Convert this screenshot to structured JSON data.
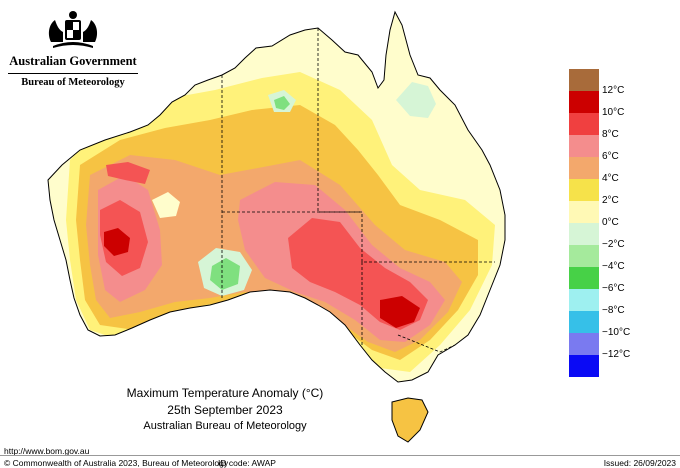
{
  "logo": {
    "government": "Australian Government",
    "bureau": "Bureau of Meteorology"
  },
  "map": {
    "title": "Maximum Temperature Anomaly (°C)",
    "date": "25th September 2023",
    "source": "Australian Bureau of Meteorology",
    "colors": {
      "land_neutral": "#fffdcc",
      "anomaly_2": "#fff27a",
      "anomaly_4": "#f6c343",
      "anomaly_6": "#f3a86c",
      "anomaly_8": "#f48d8d",
      "anomaly_10": "#f45454",
      "anomaly_12": "#cc0000",
      "cool_0": "#d6f5d6",
      "cool_2": "#7fe07f",
      "coast_outline": "#000000",
      "state_borders": "#000000"
    }
  },
  "legend": {
    "entries": [
      {
        "label": "",
        "color": "#a86b3a"
      },
      {
        "label": "12°C",
        "color": "#cc0000"
      },
      {
        "label": "10°C",
        "color": "#f04040"
      },
      {
        "label": "8°C",
        "color": "#f48d8d"
      },
      {
        "label": "6°C",
        "color": "#f3a86c"
      },
      {
        "label": "4°C",
        "color": "#f6e24a"
      },
      {
        "label": "2°C",
        "color": "#fff9b5"
      },
      {
        "label": "0°C",
        "color": "#d6f5d6"
      },
      {
        "label": "−2°C",
        "color": "#a5ea9c"
      },
      {
        "label": "−4°C",
        "color": "#47d147"
      },
      {
        "label": "−6°C",
        "color": "#9ef0f0"
      },
      {
        "label": "−8°C",
        "color": "#36c0e8"
      },
      {
        "label": "−10°C",
        "color": "#7a7af0"
      },
      {
        "label": "−12°C",
        "color": "#0a0af5"
      }
    ]
  },
  "footer": {
    "url": "http://www.bom.gov.au",
    "copyright": "© Commonwealth of Australia 2023, Bureau of Meteorology",
    "id_code": "ID code: AWAP",
    "issued": "Issued: 26/09/2023"
  }
}
